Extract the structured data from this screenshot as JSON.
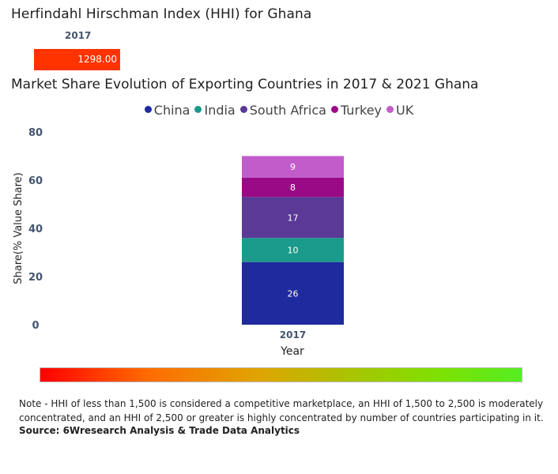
{
  "hhi": {
    "title": "Herfindahl Hirschman Index (HHI) for Ghana",
    "year": "2017",
    "value": "1298.00",
    "bar_color": "#ff3300"
  },
  "chart_data": {
    "type": "bar",
    "stacked": true,
    "title": "Market Share Evolution of Exporting Countries in 2017 & 2021 Ghana",
    "xlabel": "Year",
    "ylabel": "Share(% Value Share)",
    "ylim": [
      0,
      80
    ],
    "yticks": [
      0,
      20,
      40,
      60,
      80
    ],
    "categories": [
      "2017"
    ],
    "series": [
      {
        "name": "China",
        "values": [
          26
        ],
        "color": "#1f2a9e"
      },
      {
        "name": "India",
        "values": [
          10
        ],
        "color": "#1a9a8a"
      },
      {
        "name": "South Africa",
        "values": [
          17
        ],
        "color": "#5a3a96"
      },
      {
        "name": "Turkey",
        "values": [
          8
        ],
        "color": "#9b0a86"
      },
      {
        "name": "UK",
        "values": [
          9
        ],
        "color": "#c35ccb"
      }
    ],
    "legend_position": "top"
  },
  "footer": {
    "note": "Note - HHI of less than 1,500 is considered a competitive marketplace, an HHI of 1,500 to 2,500 is moderately concentrated, and an HHI of 2,500 or greater is highly concentrated by number of countries participating in it.",
    "source": "Source: 6Wresearch Analysis & Trade Data Analytics"
  }
}
